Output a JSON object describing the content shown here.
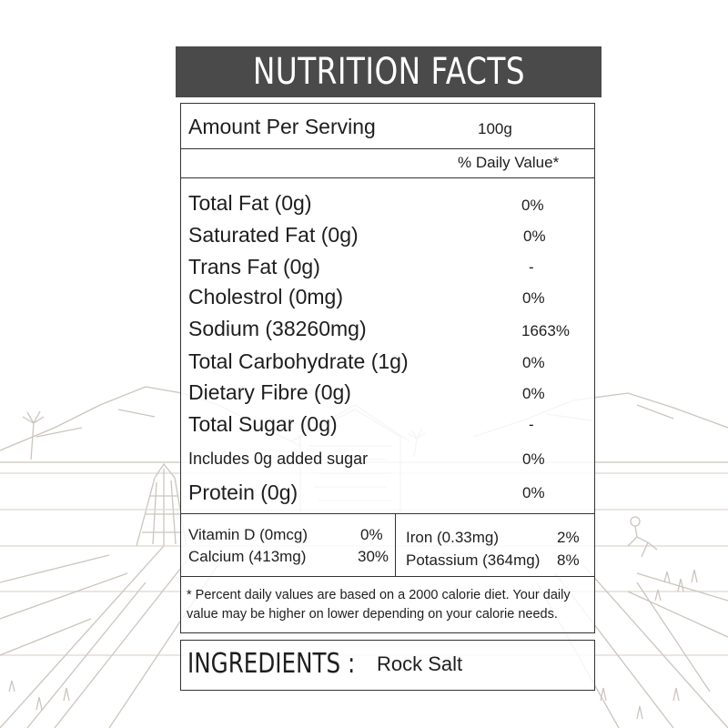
{
  "title": "NUTRITION FACTS",
  "serving": {
    "label": "Amount Per Serving",
    "size": "100g"
  },
  "daily_value_header": "% Daily Value*",
  "nutrients": [
    {
      "label": "Total Fat (0g)",
      "value": "0%"
    },
    {
      "label": "Saturated Fat (0g)",
      "value": "0%"
    },
    {
      "label": "Trans Fat (0g)",
      "value": "-"
    },
    {
      "label": "Cholestrol (0mg)",
      "value": "0%"
    },
    {
      "label": "Sodium (38260mg)",
      "value": "1663%"
    },
    {
      "label": "Total Carbohydrate (1g)",
      "value": "0%"
    },
    {
      "label": "Dietary Fibre (0g)",
      "value": "0%"
    },
    {
      "label": "Total Sugar (0g)",
      "value": "-"
    },
    {
      "label": "Includes 0g added sugar",
      "value": "0%"
    },
    {
      "label": "Protein (0g)",
      "value": "0%"
    }
  ],
  "minerals_left": [
    {
      "label": "Vitamin D (0mcg)",
      "value": "0%"
    },
    {
      "label": "Calcium (413mg)",
      "value": "30%"
    }
  ],
  "minerals_right": [
    {
      "label": "Iron (0.33mg)",
      "value": "2%"
    },
    {
      "label": "Potassium (364mg)",
      "value": "8%"
    }
  ],
  "footnote": [
    "* Percent daily values are based on a 2000 calorie diet. Your daily",
    "value may be higher on lower depending on your calorie needs."
  ],
  "ingredients": {
    "label": "INGREDIENTS :",
    "value": "Rock Salt"
  },
  "colors": {
    "header_bg": "#4a4a4a",
    "header_text": "#ffffff",
    "border": "#333333",
    "sketch": "#c9c3bb"
  }
}
